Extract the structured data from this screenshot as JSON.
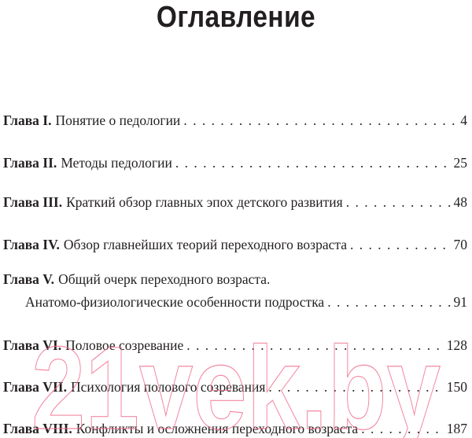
{
  "title": "Оглавление",
  "entries": [
    {
      "label": "Глава I.",
      "title": "Понятие о педологии",
      "page": "4"
    },
    {
      "label": "Глава II.",
      "title": "Методы педологии",
      "page": "25"
    },
    {
      "label": "Глава III.",
      "title": "Краткий обзор главных эпох детского развития",
      "page": "48"
    },
    {
      "label": "Глава IV.",
      "title": "Обзор главнейших теорий переходного возраста",
      "page": "70"
    },
    {
      "label": "Глава V.",
      "title": "Общий очерк переходного возраста.",
      "title2": "Анатомо-физиологические особенности подростка",
      "page": "91"
    },
    {
      "label": "Глава VI.",
      "title": "Половое созревание",
      "page": "128"
    },
    {
      "label": "Глава VII.",
      "title": "Психология полового созревания",
      "page": "150"
    },
    {
      "label": "Глава VIII.",
      "title": "Конфликты и осложнения переходного возраста",
      "page": "187"
    }
  ],
  "watermark": {
    "text": "21vek.by",
    "color": "#f06a8a"
  }
}
